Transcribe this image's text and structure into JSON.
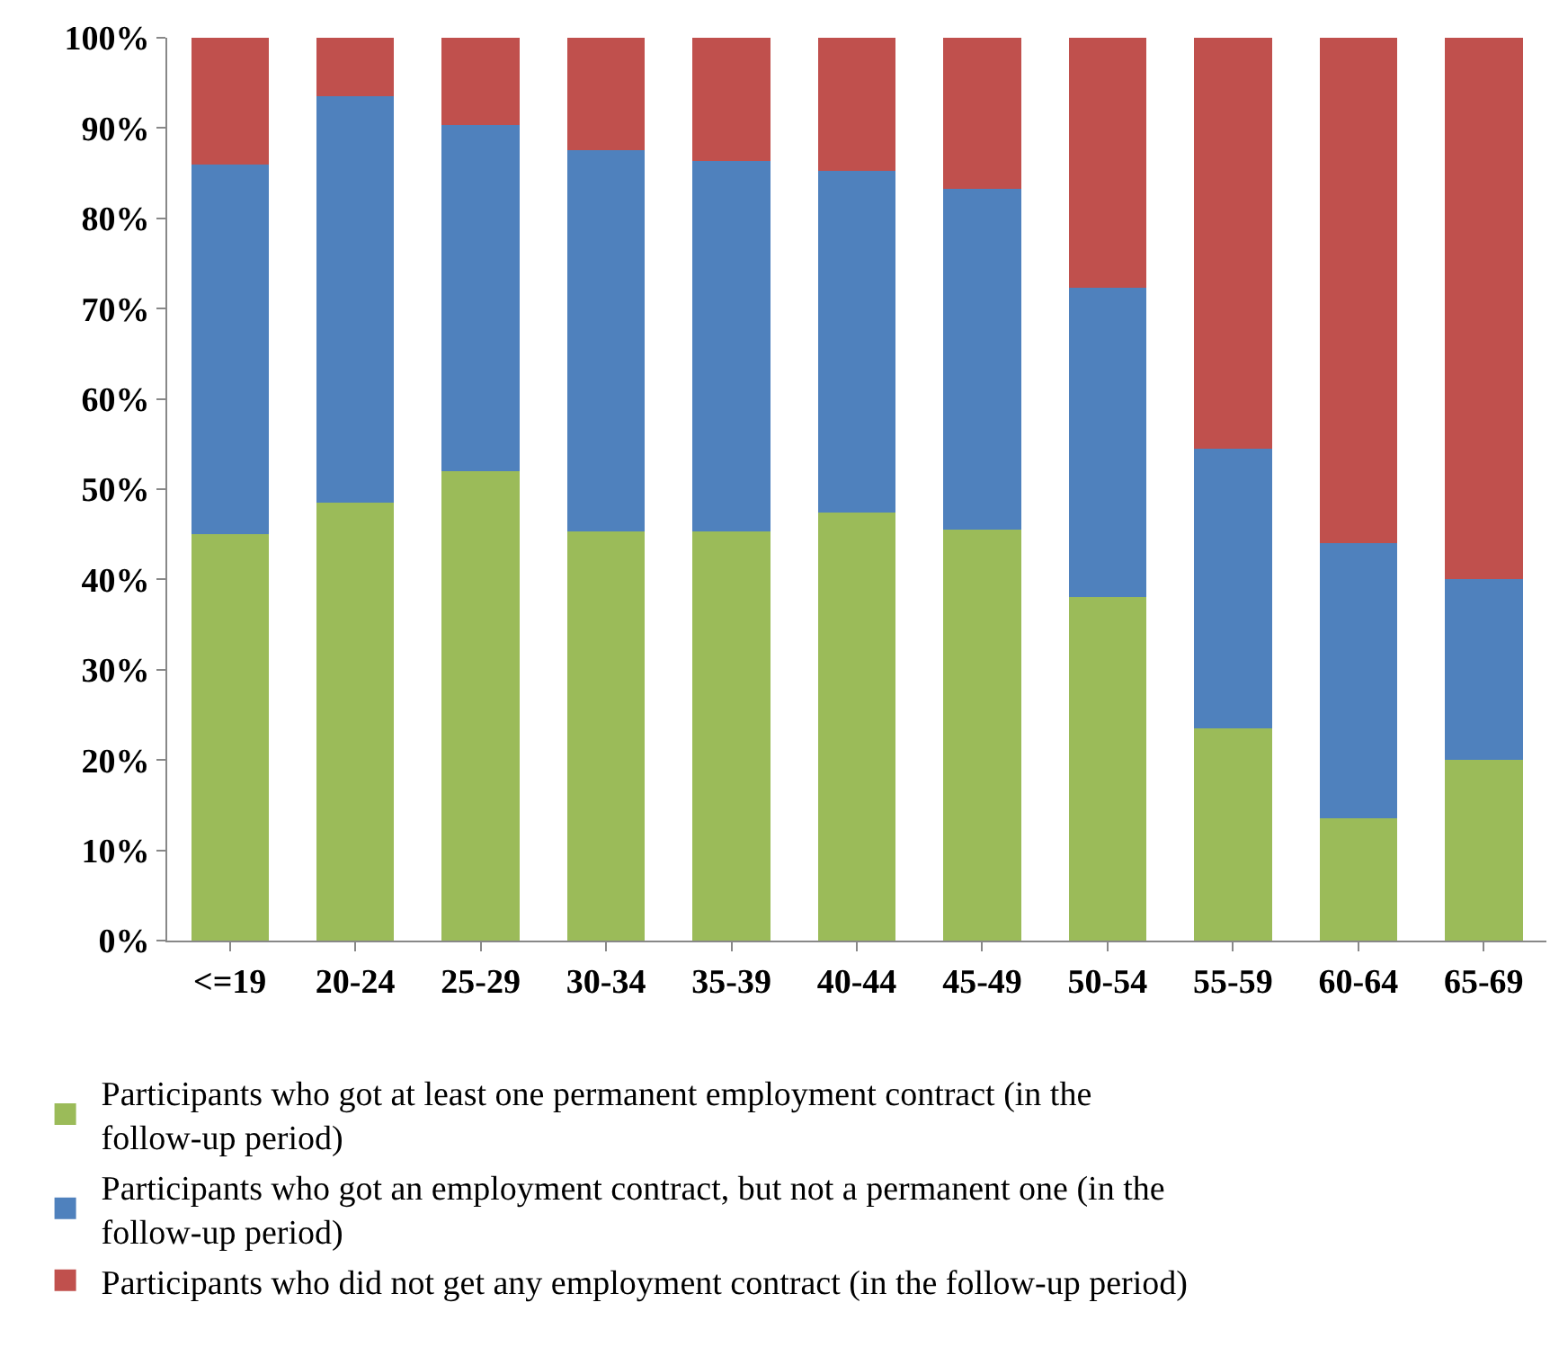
{
  "chart_data": {
    "type": "bar",
    "stacked": true,
    "categories": [
      "<=19",
      "20-24",
      "25-29",
      "30-34",
      "35-39",
      "40-44",
      "45-49",
      "50-54",
      "55-59",
      "60-64",
      "65-69"
    ],
    "series": [
      {
        "name": "Participants who got at least one permanent employment contract (in the follow-up period)",
        "color": "#9bbb59",
        "values": [
          45,
          48.5,
          52,
          45.3,
          45.3,
          47.4,
          45.5,
          38,
          23.5,
          13.5,
          20
        ]
      },
      {
        "name": "Participants who got an employment contract, but not a permanent one (in the follow-up period)",
        "color": "#4f81bd",
        "values": [
          41,
          45,
          38.3,
          42.3,
          41.1,
          37.9,
          37.8,
          34.3,
          31,
          30.5,
          20
        ]
      },
      {
        "name": "Participants who did not get any employment contract (in the follow-up period)",
        "color": "#c0504d",
        "values": [
          14,
          6.5,
          9.7,
          12.4,
          13.6,
          14.7,
          16.7,
          27.7,
          45.5,
          56,
          60
        ]
      }
    ],
    "ylim": [
      0,
      100
    ],
    "yticks": [
      {
        "value": 0,
        "label": "0%"
      },
      {
        "value": 10,
        "label": "10%"
      },
      {
        "value": 20,
        "label": "20%"
      },
      {
        "value": 30,
        "label": "30%"
      },
      {
        "value": 40,
        "label": "40%"
      },
      {
        "value": 50,
        "label": "50%"
      },
      {
        "value": 60,
        "label": "60%"
      },
      {
        "value": 70,
        "label": "70%"
      },
      {
        "value": 80,
        "label": "80%"
      },
      {
        "value": 90,
        "label": "90%"
      },
      {
        "value": 100,
        "label": "100%"
      }
    ],
    "grid": false,
    "legend": "bottom"
  }
}
